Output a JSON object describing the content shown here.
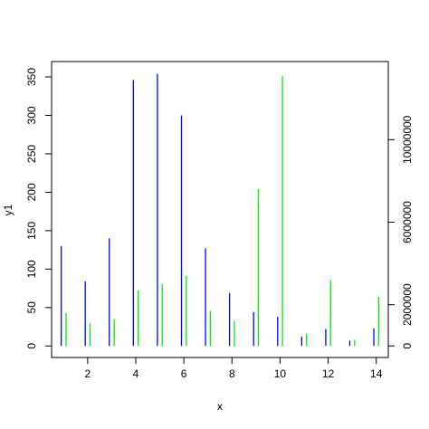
{
  "chart_data": {
    "type": "bar",
    "style": "vertical-lines (R type='h'), two series offset side by side, dual y axes",
    "xlabel": "x",
    "ylabel": "y1",
    "xlim": [
      0.5,
      14.5
    ],
    "x_ticks": [
      2,
      4,
      6,
      8,
      10,
      12,
      14
    ],
    "y_left": {
      "ticks": [
        0,
        50,
        100,
        150,
        200,
        250,
        300,
        350
      ],
      "range": [
        -15,
        370
      ]
    },
    "y_right": {
      "ticks": [
        0,
        2000000,
        6000000,
        10000000
      ],
      "range": [
        -560000,
        13790000
      ]
    },
    "grid": false,
    "legend": "none",
    "series": [
      {
        "axis": "left",
        "color": "#0000ff",
        "x": [
          1,
          2,
          3,
          4,
          5,
          6,
          7,
          8,
          9,
          10,
          11,
          12,
          13,
          14
        ],
        "values": [
          130,
          84,
          140,
          346,
          354,
          300,
          127,
          69,
          44,
          38,
          12,
          22,
          7,
          23
        ]
      },
      {
        "axis": "right",
        "color": "#00ee00",
        "x": [
          1,
          2,
          3,
          4,
          5,
          6,
          7,
          8,
          9,
          10,
          11,
          12,
          13,
          14
        ],
        "values": [
          1600000,
          1100000,
          1300000,
          2700000,
          3000000,
          3400000,
          1700000,
          1200000,
          7600000,
          13100000,
          600000,
          3200000,
          300000,
          2400000
        ]
      }
    ]
  }
}
